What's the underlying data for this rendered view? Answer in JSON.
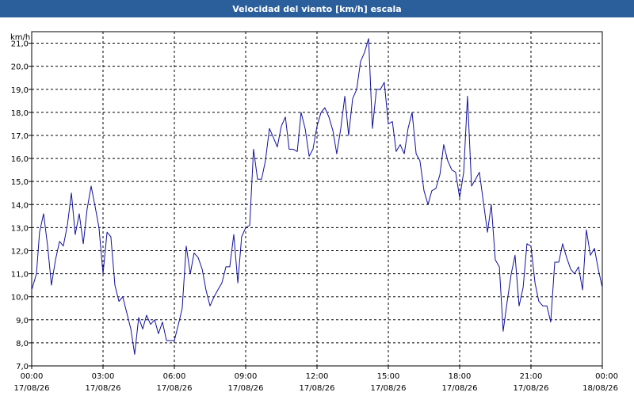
{
  "chart_data": {
    "type": "line",
    "title": "Velocidad del viento [km/h] escala",
    "ylabel": "km/h",
    "ylim": [
      7.0,
      21.5
    ],
    "yticks": [
      "7,0",
      "8,0",
      "9,0",
      "10,0",
      "11,0",
      "12,0",
      "13,0",
      "14,0",
      "15,0",
      "16,0",
      "17,0",
      "18,0",
      "19,0",
      "20,0",
      "21,0"
    ],
    "xlim": [
      0,
      24
    ],
    "xticks": [
      {
        "time": "00:00",
        "date": "17/08/26"
      },
      {
        "time": "03:00",
        "date": "17/08/26"
      },
      {
        "time": "06:00",
        "date": "17/08/26"
      },
      {
        "time": "09:00",
        "date": "17/08/26"
      },
      {
        "time": "12:00",
        "date": "17/08/26"
      },
      {
        "time": "15:00",
        "date": "17/08/26"
      },
      {
        "time": "18:00",
        "date": "17/08/26"
      },
      {
        "time": "21:00",
        "date": "17/08/26"
      },
      {
        "time": "00:00",
        "date": "18/08/26"
      }
    ],
    "grid": true,
    "line_color": "#1010a0",
    "series": [
      {
        "name": "",
        "x": [
          0.0,
          0.2,
          0.33,
          0.5,
          0.67,
          0.83,
          1.0,
          1.17,
          1.33,
          1.5,
          1.67,
          1.83,
          2.0,
          2.17,
          2.33,
          2.5,
          2.67,
          2.83,
          3.0,
          3.17,
          3.33,
          3.5,
          3.67,
          3.83,
          4.0,
          4.17,
          4.33,
          4.5,
          4.67,
          4.83,
          5.0,
          5.17,
          5.33,
          5.5,
          5.67,
          5.83,
          6.0,
          6.17,
          6.33,
          6.5,
          6.67,
          6.83,
          7.0,
          7.17,
          7.33,
          7.5,
          7.67,
          7.83,
          8.0,
          8.17,
          8.33,
          8.5,
          8.67,
          8.83,
          9.0,
          9.17,
          9.33,
          9.5,
          9.67,
          9.83,
          10.0,
          10.17,
          10.33,
          10.5,
          10.67,
          10.83,
          11.0,
          11.17,
          11.33,
          11.5,
          11.67,
          11.83,
          12.0,
          12.17,
          12.33,
          12.5,
          12.67,
          12.83,
          13.0,
          13.17,
          13.33,
          13.5,
          13.67,
          13.83,
          14.0,
          14.17,
          14.33,
          14.5,
          14.67,
          14.83,
          15.0,
          15.17,
          15.33,
          15.5,
          15.67,
          15.83,
          16.0,
          16.17,
          16.33,
          16.5,
          16.67,
          16.83,
          17.0,
          17.17,
          17.33,
          17.5,
          17.67,
          17.83,
          18.0,
          18.17,
          18.33,
          18.5,
          18.67,
          18.83,
          19.0,
          19.17,
          19.33,
          19.5,
          19.67,
          19.83,
          20.0,
          20.17,
          20.33,
          20.5,
          20.67,
          20.83,
          21.0,
          21.17,
          21.33,
          21.5,
          21.67,
          21.83,
          22.0,
          22.17,
          22.33,
          22.5,
          22.67,
          22.83,
          23.0,
          23.17,
          23.33,
          23.5,
          23.67,
          23.83,
          24.0
        ],
        "y": [
          10.3,
          11.0,
          12.8,
          13.6,
          12.2,
          10.5,
          11.6,
          12.4,
          12.2,
          13.1,
          14.5,
          12.7,
          13.6,
          12.3,
          13.8,
          14.8,
          13.9,
          13.0,
          11.0,
          12.8,
          12.6,
          10.5,
          9.8,
          10.0,
          9.3,
          8.6,
          7.5,
          9.1,
          8.6,
          9.2,
          8.8,
          9.0,
          8.4,
          8.9,
          8.1,
          8.1,
          8.1,
          8.8,
          9.5,
          12.2,
          11.0,
          11.9,
          11.7,
          11.2,
          10.3,
          9.6,
          10.0,
          10.3,
          10.6,
          11.3,
          11.3,
          12.7,
          10.6,
          12.6,
          13.0,
          13.1,
          16.4,
          15.1,
          15.1,
          15.9,
          17.3,
          16.9,
          16.5,
          17.4,
          17.8,
          16.4,
          16.4,
          16.3,
          18.0,
          17.3,
          16.1,
          16.4,
          17.4,
          18.0,
          18.2,
          17.8,
          17.2,
          16.2,
          17.3,
          18.7,
          17.0,
          18.6,
          19.0,
          20.2,
          20.6,
          21.2,
          17.3,
          19.0,
          19.0,
          19.3,
          17.5,
          17.6,
          16.3,
          16.6,
          16.2,
          17.3,
          18.0,
          16.2,
          15.9,
          14.6,
          14.0,
          14.6,
          14.7,
          15.3,
          16.6,
          15.9,
          15.5,
          15.4,
          14.3,
          15.4,
          18.7,
          14.8,
          15.1,
          15.4,
          14.1,
          12.8,
          14.0,
          11.6,
          11.3,
          8.5,
          9.8,
          11.0,
          11.8,
          9.6,
          10.4,
          12.3,
          12.2,
          10.6,
          9.8,
          9.6,
          9.6,
          8.9,
          11.5,
          11.5,
          12.3,
          11.7,
          11.2,
          11.0,
          11.3,
          10.3,
          12.9,
          11.8,
          12.1,
          11.2,
          10.4
        ]
      }
    ]
  }
}
